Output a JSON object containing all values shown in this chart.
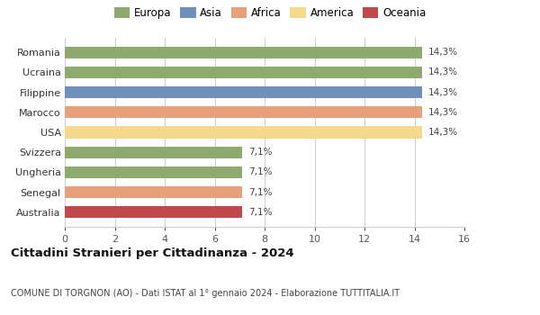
{
  "categories": [
    "Australia",
    "Senegal",
    "Ungheria",
    "Svizzera",
    "USA",
    "Marocco",
    "Filippine",
    "Ucraina",
    "Romania"
  ],
  "values": [
    7.1,
    7.1,
    7.1,
    7.1,
    14.3,
    14.3,
    14.3,
    14.3,
    14.3
  ],
  "bar_colors": [
    "#c0474a",
    "#e8a07a",
    "#8faa6e",
    "#8faa6e",
    "#f5d98b",
    "#e8a07a",
    "#7090bb",
    "#8faa6e",
    "#8faa6e"
  ],
  "bar_labels": [
    "7,1%",
    "7,1%",
    "7,1%",
    "7,1%",
    "14,3%",
    "14,3%",
    "14,3%",
    "14,3%",
    "14,3%"
  ],
  "title": "Cittadini Stranieri per Cittadinanza - 2024",
  "subtitle": "COMUNE DI TORGNON (AO) - Dati ISTAT al 1° gennaio 2024 - Elaborazione TUTTITALIA.IT",
  "xlim": [
    0,
    16
  ],
  "xticks": [
    0,
    2,
    4,
    6,
    8,
    10,
    12,
    14,
    16
  ],
  "legend_labels": [
    "Europa",
    "Asia",
    "Africa",
    "America",
    "Oceania"
  ],
  "legend_colors": [
    "#8faa6e",
    "#7090bb",
    "#e8a07a",
    "#f5d98b",
    "#c0474a"
  ],
  "background_color": "#ffffff",
  "grid_color": "#cccccc"
}
